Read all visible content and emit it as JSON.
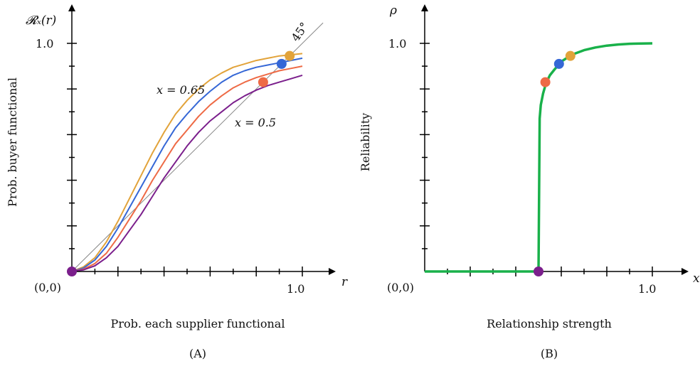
{
  "chart_data": [
    {
      "type": "line",
      "panel_label": "(A)",
      "ylabel": "Prob. buyer functional",
      "xlabel": "Prob. each supplier functional",
      "y_axis_symbol": "𝓡ₓ(r)",
      "x_axis_symbol": "r",
      "origin_label": "(0,0)",
      "x_tick_label": "1.0",
      "y_tick_label": "1.0",
      "xlim": [
        0,
        1.12
      ],
      "ylim": [
        0,
        1.08
      ],
      "grid": false,
      "reference_line": {
        "label": "45°",
        "slope": 1
      },
      "annotations": [
        {
          "text": "x = 0.65",
          "x": 0.47,
          "y": 0.78
        },
        {
          "text": "x = 0.5",
          "x": 0.85,
          "y": 0.64
        }
      ],
      "series": [
        {
          "color": "#e2a33a",
          "x": [
            0,
            0.05,
            0.1,
            0.15,
            0.2,
            0.25,
            0.3,
            0.35,
            0.4,
            0.45,
            0.5,
            0.55,
            0.6,
            0.65,
            0.7,
            0.75,
            0.8,
            0.85,
            0.9,
            0.95,
            1.0
          ],
          "y": [
            0,
            0.02,
            0.06,
            0.13,
            0.22,
            0.32,
            0.42,
            0.52,
            0.61,
            0.69,
            0.75,
            0.8,
            0.84,
            0.87,
            0.895,
            0.91,
            0.925,
            0.935,
            0.945,
            0.95,
            0.955
          ]
        },
        {
          "color": "#3567d6",
          "x": [
            0,
            0.05,
            0.1,
            0.15,
            0.2,
            0.25,
            0.3,
            0.35,
            0.4,
            0.45,
            0.5,
            0.55,
            0.6,
            0.65,
            0.7,
            0.75,
            0.8,
            0.85,
            0.9,
            0.95,
            1.0
          ],
          "y": [
            0,
            0.015,
            0.05,
            0.11,
            0.19,
            0.28,
            0.37,
            0.46,
            0.55,
            0.63,
            0.69,
            0.745,
            0.79,
            0.83,
            0.86,
            0.88,
            0.895,
            0.905,
            0.915,
            0.925,
            0.935
          ]
        },
        {
          "color": "#ee6a45",
          "x": [
            0,
            0.05,
            0.1,
            0.15,
            0.2,
            0.25,
            0.3,
            0.35,
            0.4,
            0.45,
            0.5,
            0.55,
            0.6,
            0.65,
            0.7,
            0.75,
            0.8,
            0.85,
            0.9,
            0.95,
            1.0
          ],
          "y": [
            0,
            0.01,
            0.035,
            0.08,
            0.15,
            0.23,
            0.31,
            0.4,
            0.48,
            0.56,
            0.62,
            0.68,
            0.73,
            0.77,
            0.805,
            0.83,
            0.85,
            0.865,
            0.88,
            0.89,
            0.9
          ]
        },
        {
          "color": "#7b1f8c",
          "x": [
            0,
            0.05,
            0.1,
            0.15,
            0.2,
            0.25,
            0.3,
            0.35,
            0.4,
            0.45,
            0.5,
            0.55,
            0.6,
            0.65,
            0.7,
            0.75,
            0.8,
            0.85,
            0.9,
            0.95,
            1.0
          ],
          "y": [
            0,
            0.007,
            0.025,
            0.06,
            0.11,
            0.18,
            0.25,
            0.33,
            0.41,
            0.48,
            0.55,
            0.61,
            0.66,
            0.7,
            0.74,
            0.77,
            0.795,
            0.815,
            0.83,
            0.845,
            0.86
          ]
        }
      ],
      "points": [
        {
          "x": 0.0,
          "y": 0.0,
          "color": "#7b1f8c"
        },
        {
          "x": 0.83,
          "y": 0.83,
          "color": "#ee6a45"
        },
        {
          "x": 0.91,
          "y": 0.91,
          "color": "#3567d6"
        },
        {
          "x": 0.945,
          "y": 0.945,
          "color": "#e2a33a"
        }
      ]
    },
    {
      "type": "line",
      "panel_label": "(B)",
      "ylabel": "Reliability",
      "xlabel": "Relationship strength",
      "y_axis_symbol": "ρ",
      "x_axis_symbol": "x",
      "origin_label": "(0,0)",
      "x_tick_label": "1.0",
      "y_tick_label": "1.0",
      "xlim": [
        0,
        1.12
      ],
      "ylim": [
        0,
        1.08
      ],
      "grid": false,
      "series": [
        {
          "color": "#19b14a",
          "x": [
            0,
            0.5,
            0.5,
            0.505,
            0.51,
            0.52,
            0.53,
            0.54,
            0.55,
            0.57,
            0.6,
            0.63,
            0.66,
            0.7,
            0.75,
            0.8,
            0.85,
            0.9,
            0.95,
            1.0
          ],
          "y": [
            0,
            0,
            0.0,
            0.67,
            0.73,
            0.78,
            0.815,
            0.84,
            0.86,
            0.885,
            0.92,
            0.94,
            0.955,
            0.97,
            0.982,
            0.99,
            0.995,
            0.998,
            0.999,
            1.0
          ]
        }
      ],
      "points": [
        {
          "x": 0.5,
          "y": 0.0,
          "color": "#7b1f8c"
        },
        {
          "x": 0.53,
          "y": 0.83,
          "color": "#ee6a45"
        },
        {
          "x": 0.59,
          "y": 0.91,
          "color": "#3567d6"
        },
        {
          "x": 0.64,
          "y": 0.945,
          "color": "#e2a33a"
        }
      ]
    }
  ]
}
